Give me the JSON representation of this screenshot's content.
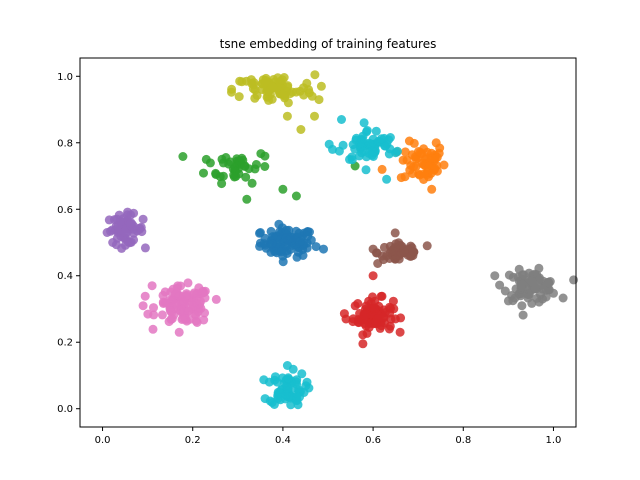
{
  "chart_data": {
    "type": "scatter",
    "title": "tsne embedding of training features",
    "xlabel": "",
    "ylabel": "",
    "xlim": [
      -0.05,
      1.05
    ],
    "ylim": [
      -0.055,
      1.055
    ],
    "xticks": [
      0.0,
      0.2,
      0.4,
      0.6,
      0.8,
      1.0
    ],
    "yticks": [
      0.0,
      0.2,
      0.4,
      0.6,
      0.8,
      1.0
    ],
    "xtick_labels": [
      "0.0",
      "0.2",
      "0.4",
      "0.6",
      "0.8",
      "1.0"
    ],
    "ytick_labels": [
      "0.0",
      "0.2",
      "0.4",
      "0.6",
      "0.8",
      "1.0"
    ],
    "grid": false,
    "legend": "none",
    "series": [
      {
        "color": "#1f77b4",
        "center": [
          0.41,
          0.5
        ],
        "spread": [
          0.03,
          0.022
        ],
        "count": 90,
        "outliers": [
          [
            0.49,
            0.48
          ],
          [
            0.35,
            0.53
          ]
        ]
      },
      {
        "color": "#ff7f0e",
        "center": [
          0.71,
          0.74
        ],
        "spread": [
          0.025,
          0.03
        ],
        "count": 55,
        "outliers": [
          [
            0.74,
            0.8
          ],
          [
            0.73,
            0.66
          ],
          [
            0.62,
            0.72
          ]
        ]
      },
      {
        "color": "#2ca02c",
        "center": [
          0.3,
          0.73
        ],
        "spread": [
          0.035,
          0.025
        ],
        "count": 40,
        "outliers": [
          [
            0.43,
            0.64
          ],
          [
            0.4,
            0.66
          ],
          [
            0.32,
            0.63
          ],
          [
            0.56,
            0.73
          ],
          [
            0.36,
            0.76
          ],
          [
            0.23,
            0.75
          ]
        ]
      },
      {
        "color": "#d62728",
        "center": [
          0.6,
          0.28
        ],
        "spread": [
          0.022,
          0.025
        ],
        "count": 80,
        "outliers": [
          [
            0.6,
            0.4
          ],
          [
            0.54,
            0.27
          ]
        ]
      },
      {
        "color": "#9467bd",
        "center": [
          0.05,
          0.54
        ],
        "spread": [
          0.02,
          0.022
        ],
        "count": 60,
        "outliers": [
          [
            0.01,
            0.53
          ],
          [
            0.09,
            0.57
          ]
        ]
      },
      {
        "color": "#8c564b",
        "center": [
          0.66,
          0.47
        ],
        "spread": [
          0.025,
          0.018
        ],
        "count": 50,
        "outliers": [
          [
            0.72,
            0.49
          ],
          [
            0.6,
            0.48
          ]
        ]
      },
      {
        "color": "#e377c2",
        "center": [
          0.18,
          0.31
        ],
        "spread": [
          0.03,
          0.028
        ],
        "count": 110,
        "outliers": [
          [
            0.09,
            0.31
          ],
          [
            0.11,
            0.37
          ],
          [
            0.17,
            0.23
          ]
        ]
      },
      {
        "color": "#7f7f7f",
        "center": [
          0.95,
          0.37
        ],
        "spread": [
          0.03,
          0.022
        ],
        "count": 80,
        "outliers": [
          [
            0.87,
            0.4
          ],
          [
            0.93,
            0.31
          ]
        ]
      },
      {
        "color": "#bcbd22",
        "center": [
          0.38,
          0.96
        ],
        "spread": [
          0.045,
          0.022
        ],
        "count": 75,
        "outliers": [
          [
            0.41,
            0.88
          ],
          [
            0.44,
            0.84
          ],
          [
            0.48,
            0.93
          ],
          [
            0.33,
            0.99
          ],
          [
            0.47,
            0.88
          ]
        ]
      },
      {
        "color": "#17becf",
        "center": [
          0.59,
          0.79
        ],
        "spread": [
          0.03,
          0.025
        ],
        "count": 60,
        "outliers": [
          [
            0.51,
            0.78
          ],
          [
            0.53,
            0.87
          ],
          [
            0.65,
            0.77
          ],
          [
            0.63,
            0.69
          ],
          [
            0.58,
            0.86
          ]
        ]
      },
      {
        "color": "#17becf",
        "center": [
          0.41,
          0.06
        ],
        "spread": [
          0.02,
          0.025
        ],
        "count": 65,
        "outliers": [
          [
            0.41,
            0.13
          ],
          [
            0.37,
            0.08
          ]
        ]
      }
    ]
  }
}
